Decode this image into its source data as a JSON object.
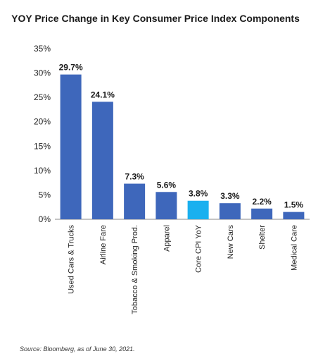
{
  "chart_data": {
    "type": "bar",
    "title": "YOY Price Change in Key Consumer Price Index Components",
    "categories": [
      "Used Cars & Trucks",
      "Airline Fare",
      "Tobacco & Smoking Prod.",
      "Apparel",
      "Core CPI YoY",
      "New Cars",
      "Shelter",
      "Medical Care"
    ],
    "values": [
      29.7,
      24.1,
      7.3,
      5.6,
      3.8,
      3.3,
      2.2,
      1.5
    ],
    "data_labels": [
      "29.7%",
      "24.1%",
      "7.3%",
      "5.6%",
      "3.8%",
      "3.3%",
      "2.2%",
      "1.5%"
    ],
    "ylim": [
      0,
      35
    ],
    "yticks": [
      "0%",
      "5%",
      "10%",
      "15%",
      "20%",
      "25%",
      "30%",
      "35%"
    ],
    "ytick_values": [
      0,
      5,
      10,
      15,
      20,
      25,
      30,
      35
    ],
    "grid": false,
    "colors": {
      "default_bar": "#3e67bb",
      "highlight_bar": "#1ab0ef",
      "highlight_category": "Core CPI YoY"
    }
  },
  "source_note": "Source: Bloomberg, as of June 30, 2021."
}
